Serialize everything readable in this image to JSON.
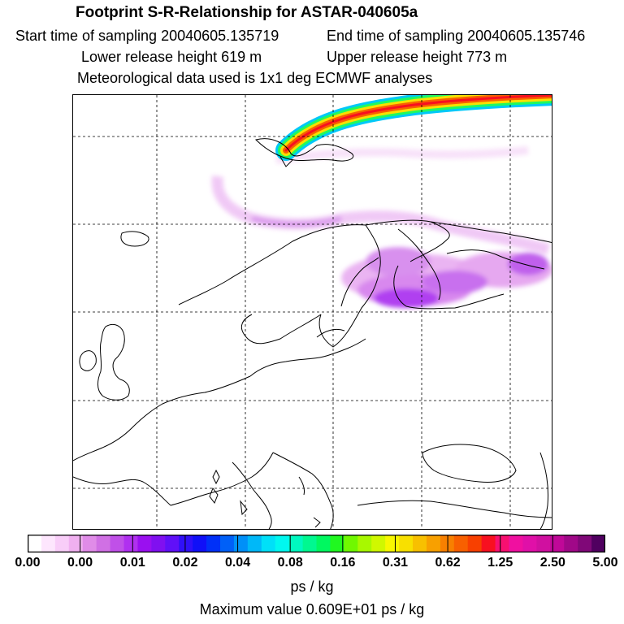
{
  "header": {
    "title": "Footprint S-R-Relationship for ASTAR-040605a",
    "start_time": "Start time of sampling 20040605.135719",
    "end_time": "End time of sampling 20040605.135746",
    "lower_height": "Lower release height  619 m",
    "upper_height": "Upper release height  773 m",
    "met_data": "Meteorological data used is 1x1 deg ECMWF analyses"
  },
  "colorbar": {
    "ticks": [
      "0.00",
      "0.00",
      "0.01",
      "0.02",
      "0.04",
      "0.08",
      "0.16",
      "0.31",
      "0.62",
      "1.25",
      "2.50",
      "5.00"
    ],
    "colors": [
      "#ffffff",
      "#fde6fd",
      "#f8cdf8",
      "#f0b0f0",
      "#e08ce8",
      "#d070e4",
      "#c050e8",
      "#b030f0",
      "#9a10f0",
      "#8010f0",
      "#6010f8",
      "#3010f8",
      "#1010f8",
      "#0030f8",
      "#0060f8",
      "#0090f8",
      "#00b8f8",
      "#00e0f8",
      "#00f8f0",
      "#00f8c0",
      "#00f890",
      "#00f860",
      "#20f820",
      "#70f800",
      "#a8f800",
      "#d0f800",
      "#f8f800",
      "#f8e000",
      "#f8c000",
      "#f8a000",
      "#f88000",
      "#f86000",
      "#f84000",
      "#f81020",
      "#f81070",
      "#f010a0",
      "#e010a8",
      "#d010a0",
      "#c00898",
      "#a00888",
      "#800878",
      "#500060"
    ],
    "units": "ps / kg",
    "max_value": "Maximum value  0.609E+01 ps / kg"
  },
  "colors": {
    "plume_core": "#f81020",
    "plume_mid": "#f8c000",
    "plume_edge": "#00f8c0",
    "footprint_low": "#e8a8f0",
    "footprint_mid": "#b030f0"
  }
}
